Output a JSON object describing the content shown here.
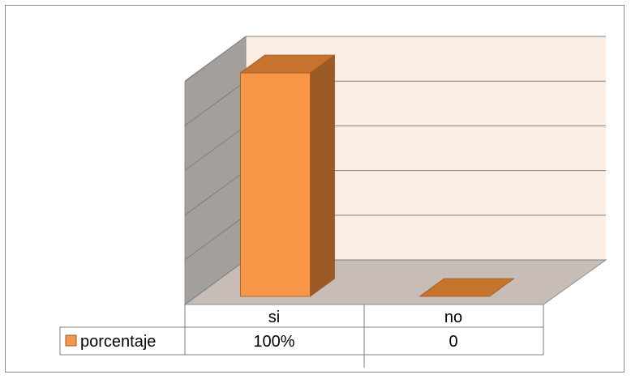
{
  "chart_data": {
    "type": "bar",
    "categories": [
      "si",
      "no"
    ],
    "series": [
      {
        "name": "porcentaje",
        "values": [
          1.0,
          0.0
        ],
        "color": "#f79646"
      }
    ],
    "data_table": {
      "header": [
        "si",
        "no"
      ],
      "rows": [
        {
          "label": "porcentaje",
          "cells": [
            "100%",
            "0"
          ]
        }
      ]
    },
    "ylim": [
      0,
      1
    ],
    "grid": true,
    "legend": "data-table-key",
    "colors": {
      "bar_front": "#f79646",
      "bar_top": "#c6732d",
      "bar_side": "#9c5a26",
      "back_wall": "#fdeee4",
      "side_wall": "#a39f9a",
      "floor": "#c8bdb6",
      "grid": "#7f7f7f"
    }
  }
}
